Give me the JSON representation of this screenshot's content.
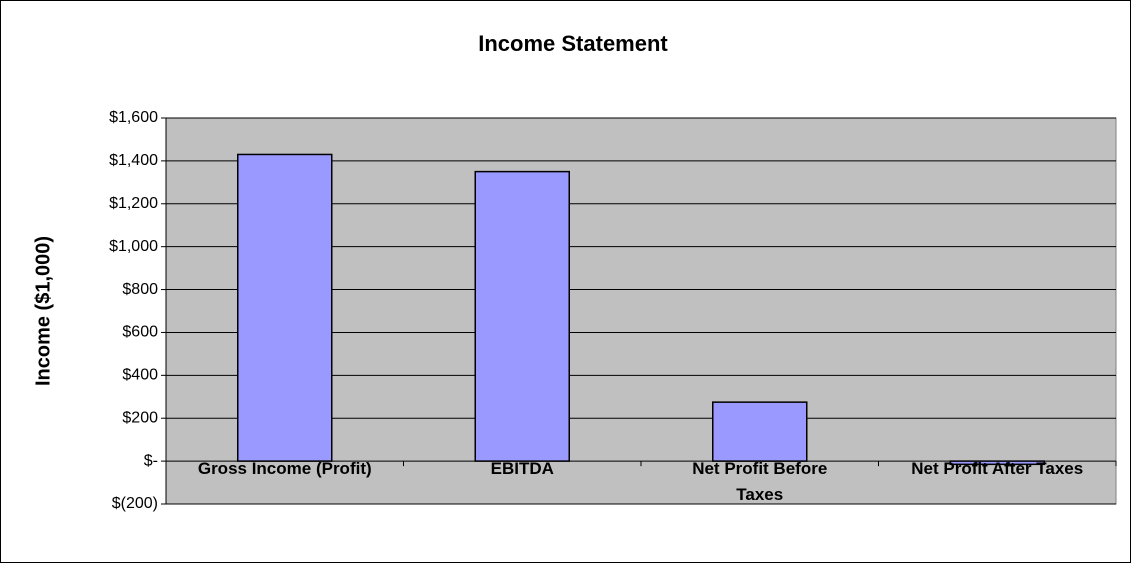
{
  "chart_data": {
    "type": "bar",
    "title": "Income Statement",
    "y_label": "Income ($1,000)",
    "categories": [
      "Gross Income (Profit)",
      "EBITDA",
      "Net Profit Before Taxes",
      "Net Profit After Taxes"
    ],
    "values": [
      1430,
      1350,
      275,
      -15
    ],
    "color": "#9999ff",
    "ylim": [
      -200,
      1600
    ],
    "yticks": [
      {
        "value": -200,
        "label": "$(200)"
      },
      {
        "value": 0,
        "label": "$-"
      },
      {
        "value": 200,
        "label": "$200"
      },
      {
        "value": 400,
        "label": "$400"
      },
      {
        "value": 600,
        "label": "$600"
      },
      {
        "value": 800,
        "label": "$800"
      },
      {
        "value": 1000,
        "label": "$1,000"
      },
      {
        "value": 1200,
        "label": "$1,200"
      },
      {
        "value": 1400,
        "label": "$1,400"
      },
      {
        "value": 1600,
        "label": "$1,600"
      }
    ],
    "grid": true
  }
}
